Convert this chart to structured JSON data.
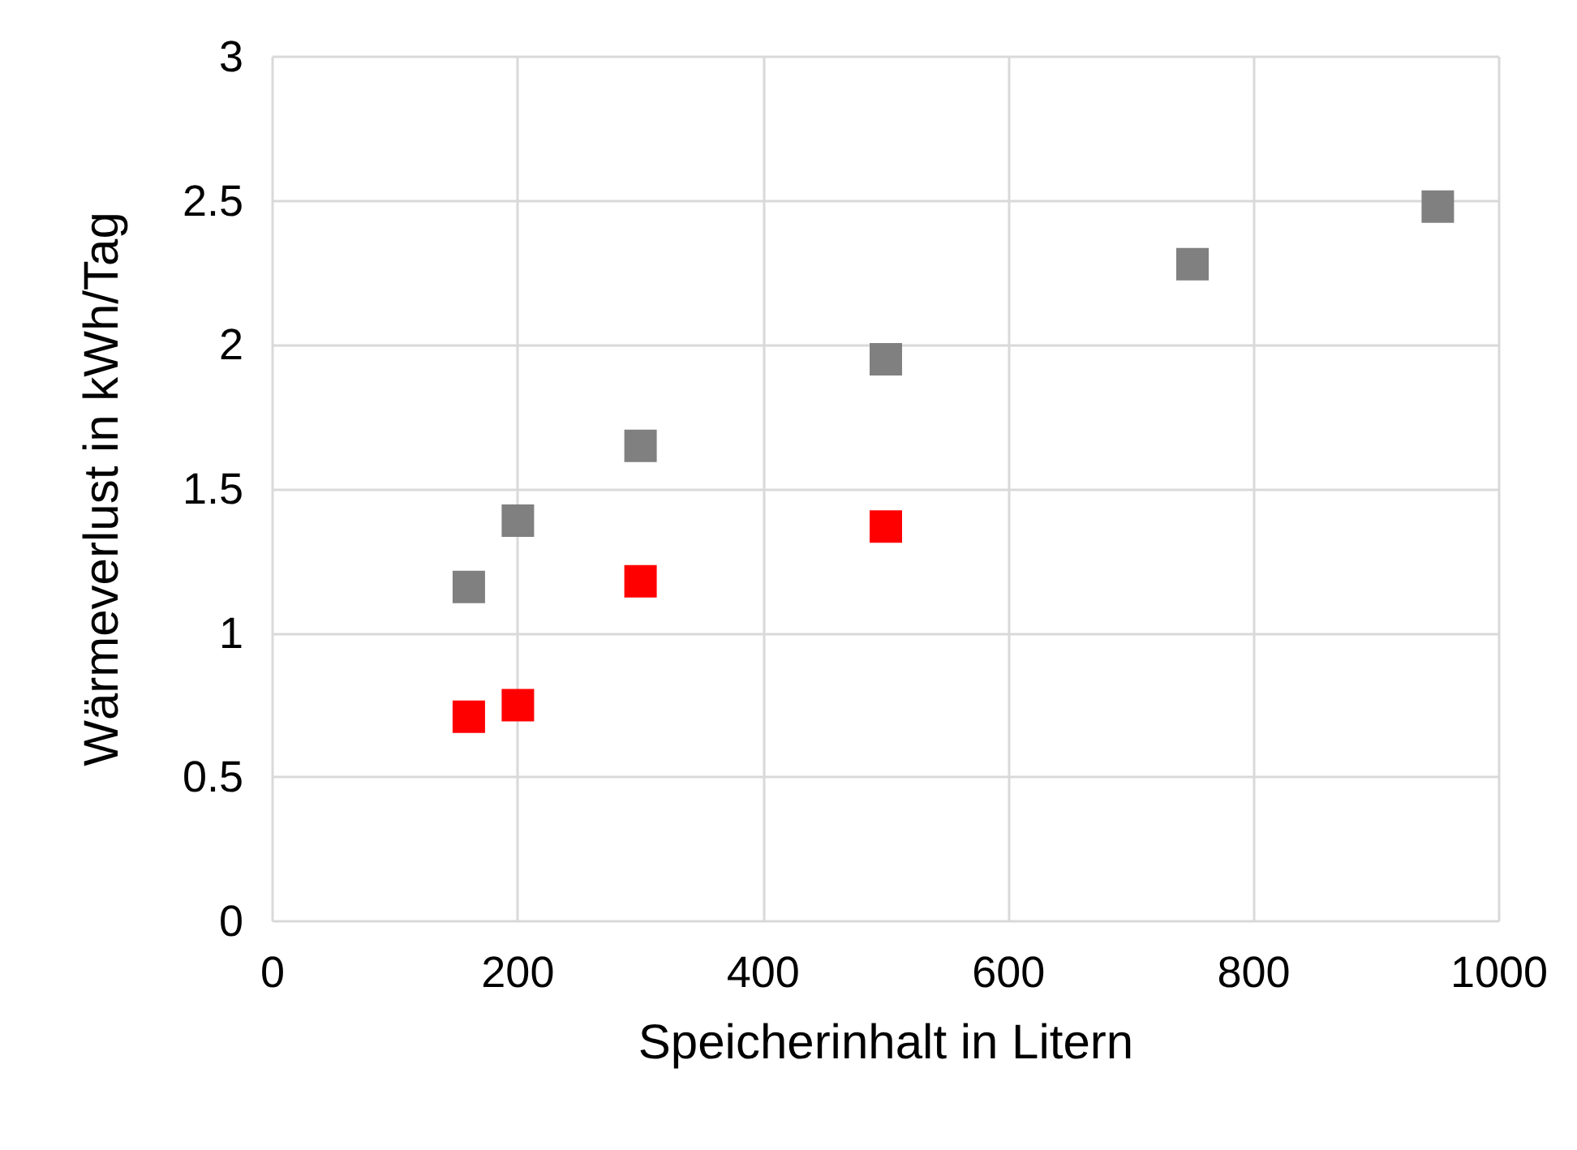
{
  "chart_data": {
    "type": "scatter",
    "xlabel": "Speicherinhalt in Litern",
    "ylabel": "Wärmeverlust in kWh/Tag",
    "xlim": [
      0,
      1000
    ],
    "xticks": [
      0,
      200,
      400,
      600,
      800,
      1000
    ],
    "ylim": [
      0,
      3
    ],
    "yticks": [
      0,
      0.5,
      1,
      1.5,
      2,
      2.5,
      3
    ],
    "grid": true,
    "marker": "square",
    "series": [
      {
        "color": "#808080",
        "x": [
          160,
          200,
          300,
          500,
          750,
          950
        ],
        "values": [
          1.16,
          1.39,
          1.65,
          1.95,
          2.28,
          2.48
        ]
      },
      {
        "color": "#ff0000",
        "x": [
          160,
          200,
          300,
          500
        ],
        "values": [
          0.71,
          0.75,
          1.18,
          1.37
        ]
      }
    ]
  }
}
